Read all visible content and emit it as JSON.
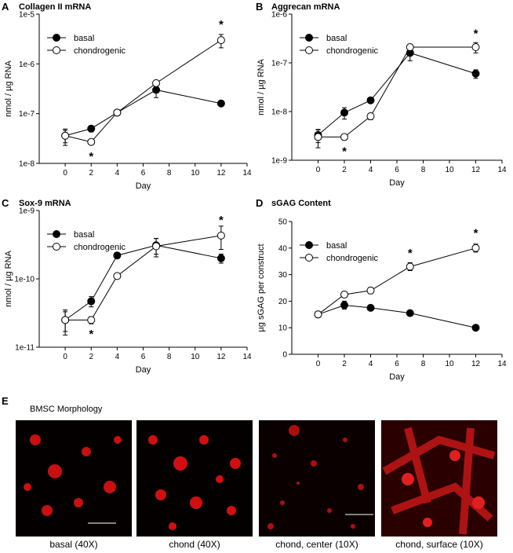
{
  "chart_data": [
    {
      "type": "line",
      "panel": "A",
      "title": "Collagen II mRNA",
      "xlabel": "Day",
      "ylabel": "nmol / µg RNA",
      "log_y": true,
      "xlim": [
        -2,
        14
      ],
      "xticks": [
        0,
        2,
        4,
        6,
        8,
        10,
        12,
        14
      ],
      "ylim": [
        1e-08,
        1e-05
      ],
      "yticks": [
        {
          "value": 1e-08,
          "label": "1e-8"
        },
        {
          "value": 1e-07,
          "label": "1e-7"
        },
        {
          "value": 1e-06,
          "label": "1e-6"
        },
        {
          "value": 1e-05,
          "label": "1e-5"
        }
      ],
      "x": [
        0,
        2,
        4,
        7,
        12
      ],
      "legend": "upper left",
      "series": [
        {
          "name": "basal",
          "color": "#000000",
          "values": [
            3.6e-08,
            5e-08,
            1.05e-07,
            3e-07,
            1.6e-07
          ],
          "errors": [
            1e-08,
            7e-09,
            8e-09,
            9e-08,
            1e-08
          ]
        },
        {
          "name": "chondrogenic",
          "color": "#ffffff",
          "values": [
            3.6e-08,
            2.7e-08,
            1.05e-07,
            4.1e-07,
            3e-06
          ],
          "errors": [
            1.3e-08,
            3e-09,
            8e-09,
            5e-08,
            9e-07
          ]
        }
      ],
      "annotations": [
        {
          "x": 2,
          "y": 1.45e-08,
          "text": "*"
        },
        {
          "x": 12,
          "y": 6.5e-06,
          "text": "*"
        }
      ]
    },
    {
      "type": "line",
      "panel": "B",
      "title": "Aggrecan mRNA",
      "xlabel": "Day",
      "ylabel": "nmol / µg RNA",
      "log_y": true,
      "xlim": [
        -2,
        14
      ],
      "xticks": [
        0,
        2,
        4,
        6,
        8,
        10,
        12,
        14
      ],
      "ylim": [
        1e-09,
        1e-06
      ],
      "yticks": [
        {
          "value": 1e-09,
          "label": "1e-9"
        },
        {
          "value": 1e-08,
          "label": "1e-8"
        },
        {
          "value": 1e-07,
          "label": "1e-7"
        },
        {
          "value": 1e-06,
          "label": "1e-6"
        }
      ],
      "x": [
        0,
        2,
        4,
        7,
        12
      ],
      "legend": "upper left",
      "series": [
        {
          "name": "basal",
          "color": "#000000",
          "values": [
            3.3e-09,
            9.5e-09,
            1.7e-08,
            1.6e-07,
            6e-08
          ],
          "errors": [
            1e-09,
            2.5e-09,
            2e-09,
            5e-08,
            1.2e-08
          ]
        },
        {
          "name": "chondrogenic",
          "color": "#ffffff",
          "values": [
            3e-09,
            3e-09,
            8e-09,
            2.1e-07,
            2.1e-07
          ],
          "errors": [
            1.2e-09,
            4e-10,
            1.2e-09,
            2e-08,
            5e-08
          ]
        }
      ],
      "annotations": [
        {
          "x": 2,
          "y": 1.6e-09,
          "text": "*"
        },
        {
          "x": 12,
          "y": 4.2e-07,
          "text": "*"
        }
      ]
    },
    {
      "type": "line",
      "panel": "C",
      "title": "Sox-9 mRNA",
      "xlabel": "Day",
      "ylabel": "nmol / µg RNA",
      "log_y": true,
      "xlim": [
        -2,
        14
      ],
      "xticks": [
        0,
        2,
        4,
        6,
        8,
        10,
        12,
        14
      ],
      "ylim": [
        1e-11,
        1e-09
      ],
      "yticks": [
        {
          "value": 1e-11,
          "label": "1e-11"
        },
        {
          "value": 1e-10,
          "label": "1e-10"
        },
        {
          "value": 1e-09,
          "label": "1e-9"
        }
      ],
      "x": [
        0,
        2,
        4,
        7,
        12
      ],
      "legend": "upper left",
      "series": [
        {
          "name": "basal",
          "color": "#000000",
          "values": [
            2.5e-11,
            4.7e-11,
            2.2e-10,
            3.1e-10,
            2e-10
          ],
          "errors": [
            8e-12,
            8e-12,
            1.5e-11,
            8e-11,
            3e-11
          ]
        },
        {
          "name": "chondrogenic",
          "color": "#ffffff",
          "values": [
            2.5e-11,
            2.5e-11,
            1.1e-10,
            3e-10,
            4.3e-10
          ],
          "errors": [
            1e-11,
            3e-12,
            8e-12,
            9e-11,
            1.6e-10
          ]
        }
      ],
      "annotations": [
        {
          "x": 2,
          "y": 1.6e-11,
          "text": "*"
        },
        {
          "x": 12,
          "y": 7.5e-10,
          "text": "*"
        }
      ]
    },
    {
      "type": "line",
      "panel": "D",
      "title": "sGAG Content",
      "xlabel": "Day",
      "ylabel": "µg sGAG per construct",
      "log_y": false,
      "xlim": [
        -2,
        14
      ],
      "xticks": [
        0,
        2,
        4,
        6,
        8,
        10,
        12,
        14
      ],
      "ylim": [
        0,
        50
      ],
      "yticks": [
        0,
        10,
        20,
        30,
        40,
        50
      ],
      "x": [
        0,
        2,
        4,
        7,
        12
      ],
      "legend": "upper left",
      "series": [
        {
          "name": "basal",
          "color": "#000000",
          "values": [
            15,
            18.5,
            17.5,
            15.5,
            10
          ],
          "errors": [
            0.6,
            1.5,
            0.6,
            0.5,
            0.5
          ]
        },
        {
          "name": "chondrogenic",
          "color": "#ffffff",
          "values": [
            15,
            22.5,
            24,
            33,
            40
          ],
          "errors": [
            0.6,
            0.8,
            1.2,
            1.5,
            1.5
          ]
        }
      ],
      "annotations": [
        {
          "x": 7,
          "y": 38.5,
          "text": "*"
        },
        {
          "x": 12,
          "y": 46,
          "text": "*"
        }
      ]
    }
  ],
  "panel_e": {
    "panel": "E",
    "title": "BMSC Morphology",
    "captions": [
      "basal (40X)",
      "chond (40X)",
      "chond, center (10X)",
      "chond, surface (10X)"
    ]
  }
}
